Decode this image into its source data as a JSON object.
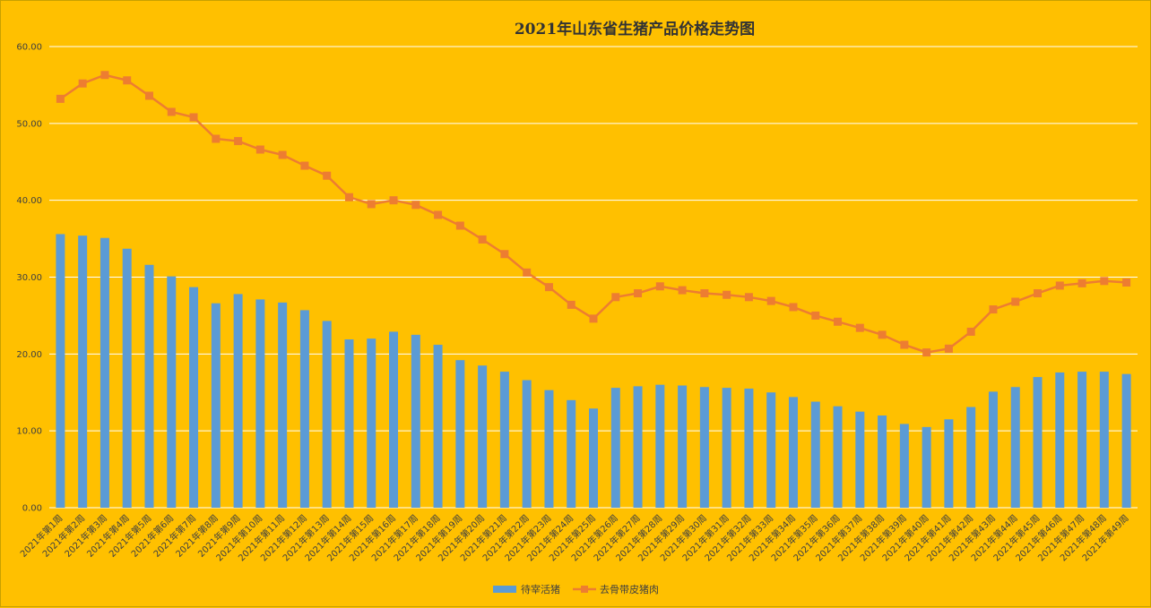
{
  "chart_data": {
    "type": "bar",
    "title": "2021年山东省生猪产品价格走势图",
    "xlabel": "",
    "ylabel": "",
    "ylim": [
      0,
      60
    ],
    "yticks": [
      "0.00",
      "10.00",
      "20.00",
      "30.00",
      "40.00",
      "50.00",
      "60.00"
    ],
    "grid": true,
    "legend_position": "bottom",
    "categories": [
      "2021年第1周",
      "2021年第2周",
      "2021年第3周",
      "2021年第4周",
      "2021年第5周",
      "2021年第6周",
      "2021年第7周",
      "2021年第8周",
      "2021年第9周",
      "2021年第10周",
      "2021年第11周",
      "2021年第12周",
      "2021年第13周",
      "2021年第14周",
      "2021年第15周",
      "2021年第16周",
      "2021年第17周",
      "2021年第18周",
      "2021年第19周",
      "2021年第20周",
      "2021年第21周",
      "2021年第22周",
      "2021年第23周",
      "2021年第24周",
      "2021年第25周",
      "2021年第26周",
      "2021年第27周",
      "2021年第28周",
      "2021年第29周",
      "2021年第30周",
      "2021年第31周",
      "2021年第32周",
      "2021年第33周",
      "2021年第34周",
      "2021年第35周",
      "2021年第36周",
      "2021年第37周",
      "2021年第38周",
      "2021年第39周",
      "2021年第40周",
      "2021年第41周",
      "2021年第42周",
      "2021年第43周",
      "2021年第44周",
      "2021年第45周",
      "2021年第46周",
      "2021年第47周",
      "2021年第48周",
      "2021年第49周"
    ],
    "series": [
      {
        "name": "待宰活猪",
        "type": "bar",
        "color": "#5b9bd5",
        "values": [
          35.6,
          35.4,
          35.1,
          33.7,
          31.6,
          30.1,
          28.7,
          26.6,
          27.8,
          27.1,
          26.7,
          25.7,
          24.3,
          21.9,
          22.0,
          22.9,
          22.5,
          21.2,
          19.2,
          18.5,
          17.7,
          16.6,
          15.3,
          14.0,
          12.9,
          15.6,
          15.8,
          16.0,
          15.9,
          15.7,
          15.6,
          15.5,
          15.0,
          14.4,
          13.8,
          13.2,
          12.5,
          12.0,
          10.9,
          10.5,
          11.5,
          13.1,
          15.1,
          15.7,
          17.0,
          17.6,
          17.7,
          17.7,
          17.4
        ]
      },
      {
        "name": "去骨带皮猪肉",
        "type": "line",
        "color": "#ed7d31",
        "values": [
          53.2,
          55.2,
          56.3,
          55.6,
          53.6,
          51.5,
          50.8,
          48.0,
          47.7,
          46.6,
          45.9,
          44.5,
          43.2,
          40.4,
          39.5,
          40.0,
          39.4,
          38.1,
          36.7,
          34.9,
          33.0,
          30.6,
          28.7,
          26.4,
          24.6,
          27.4,
          27.9,
          28.8,
          28.3,
          27.9,
          27.7,
          27.4,
          26.9,
          26.1,
          25.0,
          24.2,
          23.4,
          22.5,
          21.2,
          20.2,
          20.7,
          22.9,
          25.8,
          26.8,
          27.9,
          28.9,
          29.2,
          29.5,
          29.3
        ]
      }
    ]
  }
}
